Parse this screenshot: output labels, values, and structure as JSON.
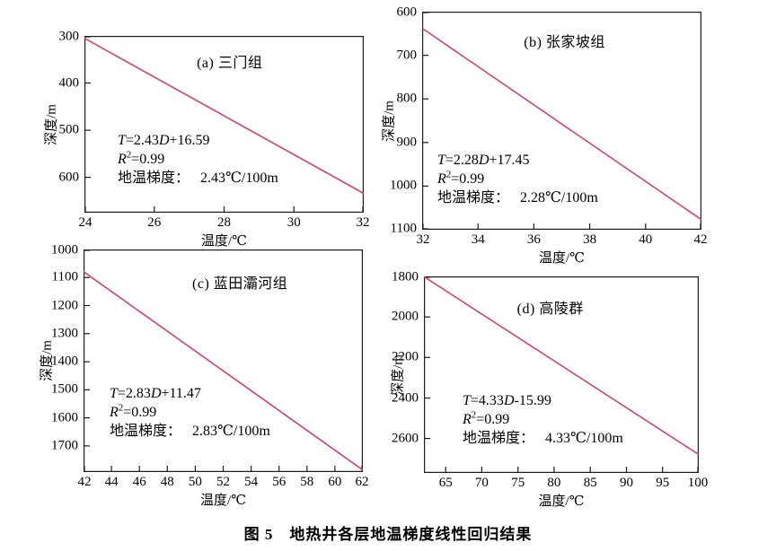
{
  "figure": {
    "caption": "图 5　地热井各层地温梯度线性回归结果"
  },
  "colors": {
    "line": "#d4416f",
    "axis": "#1c1c1c",
    "text": "#000000"
  },
  "chart_data": [
    {
      "type": "line",
      "panel": "a",
      "title": "(a) 三门组",
      "xlabel": "温度/℃",
      "ylabel": "深度/m",
      "xlim": [
        24,
        32
      ],
      "xticks": [
        24,
        26,
        28,
        30,
        32
      ],
      "ylim": [
        300,
        675
      ],
      "yticks": [
        300,
        400,
        500,
        600
      ],
      "y_inverted": true,
      "grid": false,
      "line": {
        "x": [
          24,
          32
        ],
        "y": [
          305,
          634
        ]
      },
      "regression": {
        "slope": 2.43,
        "intercept": 16.59,
        "r2": 0.99,
        "gradient_c_per_100m": 2.43
      },
      "annotation": {
        "eq_lhs": "T",
        "eq_mid": "=2.43",
        "eq_var": "D",
        "eq_tail": "+16.59",
        "r_var": "R",
        "r_sup": "2",
        "r_val": "=0.99",
        "gradient_label": "地温梯度：",
        "gradient_value": "2.43℃/100m"
      }
    },
    {
      "type": "line",
      "panel": "b",
      "title": "(b) 张家坡组",
      "xlabel": "温度/℃",
      "ylabel": "深度/m",
      "xlim": [
        32,
        42
      ],
      "xticks": [
        32,
        34,
        36,
        38,
        40,
        42
      ],
      "ylim": [
        600,
        1100
      ],
      "yticks": [
        600,
        700,
        800,
        900,
        1000,
        1100
      ],
      "y_inverted": true,
      "grid": false,
      "line": {
        "x": [
          32,
          42
        ],
        "y": [
          638,
          1077
        ]
      },
      "regression": {
        "slope": 2.28,
        "intercept": 17.45,
        "r2": 0.99,
        "gradient_c_per_100m": 2.28
      },
      "annotation": {
        "eq_lhs": "T",
        "eq_mid": "=2.28",
        "eq_var": "D",
        "eq_tail": "+17.45",
        "r_var": "R",
        "r_sup": "2",
        "r_val": "=0.99",
        "gradient_label": "地温梯度：",
        "gradient_value": "2.28℃/100m"
      }
    },
    {
      "type": "line",
      "panel": "c",
      "title": "(c) 蓝田灞河组",
      "xlabel": "温度/℃",
      "ylabel": "深度/m",
      "xlim": [
        42,
        62
      ],
      "xticks": [
        42,
        44,
        46,
        48,
        50,
        52,
        54,
        56,
        58,
        60,
        62
      ],
      "ylim": [
        1000,
        1793
      ],
      "yticks": [
        1000,
        1100,
        1200,
        1300,
        1400,
        1500,
        1600,
        1700
      ],
      "y_inverted": true,
      "grid": false,
      "line": {
        "x": [
          42,
          62
        ],
        "y": [
          1079,
          1786
        ]
      },
      "regression": {
        "slope": 2.83,
        "intercept": 11.47,
        "r2": 0.99,
        "gradient_c_per_100m": 2.83
      },
      "annotation": {
        "eq_lhs": "T",
        "eq_mid": "=2.83",
        "eq_var": "D",
        "eq_tail": "+11.47",
        "r_var": "R",
        "r_sup": "2",
        "r_val": "=0.99",
        "gradient_label": "地温梯度：",
        "gradient_value": "2.83℃/100m"
      }
    },
    {
      "type": "line",
      "panel": "d",
      "title": "(d) 高陵群",
      "xlabel": "温度/℃",
      "ylabel": "深度/m",
      "xlim": [
        62,
        100
      ],
      "xticks": [
        65,
        70,
        75,
        80,
        85,
        90,
        95,
        100
      ],
      "ylim": [
        1800,
        2770
      ],
      "yticks": [
        1800,
        2000,
        2200,
        2400,
        2600
      ],
      "y_inverted": true,
      "grid": false,
      "line": {
        "x": [
          62,
          100
        ],
        "y": [
          1801,
          2679
        ]
      },
      "regression": {
        "slope": 4.33,
        "intercept": -15.99,
        "r2": 0.99,
        "gradient_c_per_100m": 4.33
      },
      "annotation": {
        "eq_lhs": "T",
        "eq_mid": "=4.33",
        "eq_var": "D",
        "eq_tail": "-15.99",
        "r_var": "R",
        "r_sup": "2",
        "r_val": "=0.99",
        "gradient_label": "地温梯度：",
        "gradient_value": "4.33℃/100m"
      }
    }
  ]
}
